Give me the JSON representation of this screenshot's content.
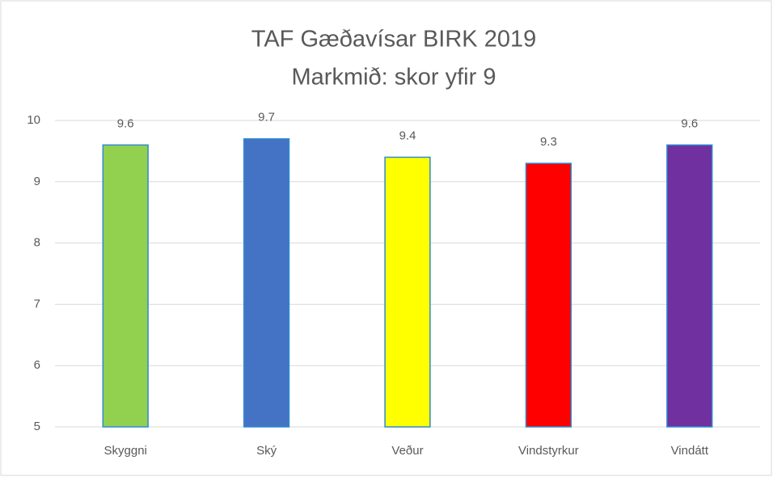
{
  "chart_data": {
    "type": "bar",
    "title": "TAF Gæðavísar BIRK 2019",
    "subtitle": "Markmið: skor yfir 9",
    "categories": [
      "Skyggni",
      "Ský",
      "Veður",
      "Vindstyrkur",
      "Vindátt"
    ],
    "values": [
      9.6,
      9.7,
      9.4,
      9.3,
      9.6
    ],
    "colors": [
      "#92d050",
      "#4472c4",
      "#ffff00",
      "#ff0000",
      "#7030a0"
    ],
    "edgecolor": "#2e8bd0",
    "ylim": [
      5,
      10
    ],
    "yticks": [
      5,
      6,
      7,
      8,
      9,
      10
    ],
    "grid": true
  }
}
